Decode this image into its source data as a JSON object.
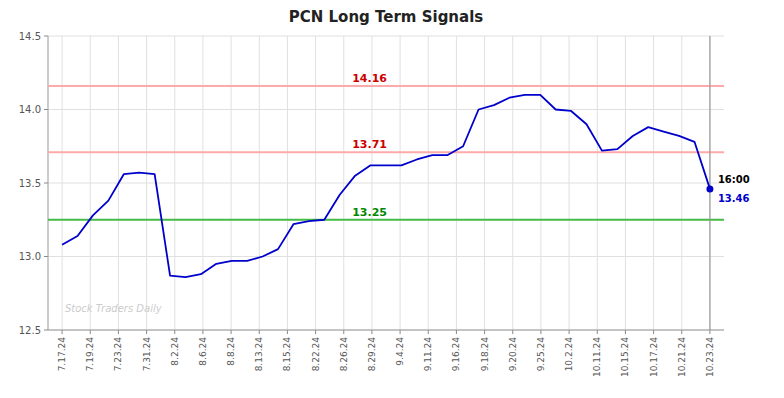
{
  "chart_data": {
    "type": "line",
    "title": "PCN Long Term Signals",
    "xlim": [
      -0.5,
      23.5
    ],
    "xticks": [
      {
        "value": 0,
        "label": "7.17.24"
      },
      {
        "value": 1,
        "label": "7.19.24"
      },
      {
        "value": 2,
        "label": "7.23.24"
      },
      {
        "value": 3,
        "label": "7.31.24"
      },
      {
        "value": 4,
        "label": "8.2.24"
      },
      {
        "value": 5,
        "label": "8.6.24"
      },
      {
        "value": 6,
        "label": "8.8.24"
      },
      {
        "value": 7,
        "label": "8.13.24"
      },
      {
        "value": 8,
        "label": "8.15.24"
      },
      {
        "value": 9,
        "label": "8.22.24"
      },
      {
        "value": 10,
        "label": "8.26.24"
      },
      {
        "value": 11,
        "label": "8.29.24"
      },
      {
        "value": 12,
        "label": "9.4.24"
      },
      {
        "value": 13,
        "label": "9.11.24"
      },
      {
        "value": 14,
        "label": "9.16.24"
      },
      {
        "value": 15,
        "label": "9.18.24"
      },
      {
        "value": 16,
        "label": "9.20.24"
      },
      {
        "value": 17,
        "label": "9.25.24"
      },
      {
        "value": 18,
        "label": "10.2.24"
      },
      {
        "value": 19,
        "label": "10.11.24"
      },
      {
        "value": 20,
        "label": "10.15.24"
      },
      {
        "value": 21,
        "label": "10.17.24"
      },
      {
        "value": 22,
        "label": "10.21.24"
      },
      {
        "value": 23,
        "label": "10.23.24"
      }
    ],
    "ylim": [
      12.5,
      14.5
    ],
    "yticks": [
      12.5,
      {
        "value": 13,
        "label": "13.0"
      },
      13.5,
      {
        "value": 14,
        "label": "14.0"
      },
      14.5
    ],
    "grid": true,
    "color": "#0000cc",
    "values": [
      13.08,
      13.14,
      13.28,
      13.38,
      13.56,
      13.57,
      13.56,
      12.87,
      12.86,
      12.88,
      12.95,
      12.97,
      12.97,
      13.0,
      13.05,
      13.22,
      13.24,
      13.25,
      13.42,
      13.55,
      13.62,
      13.62,
      13.62,
      13.66,
      13.69,
      13.69,
      13.75,
      14.0,
      14.03,
      14.08,
      14.1,
      14.1,
      14.0,
      13.99,
      13.9,
      13.72,
      13.73,
      13.82,
      13.88,
      13.85,
      13.82,
      13.78,
      13.46
    ],
    "reference_lines": [
      {
        "y": 13.25,
        "label": "13.25",
        "color": "#44bb44",
        "label_color": "#008800"
      },
      {
        "y": 13.71,
        "label": "13.71",
        "color": "#ffaaaa",
        "label_color": "#cc0000"
      },
      {
        "y": 14.16,
        "label": "14.16",
        "color": "#ffaaaa",
        "label_color": "#cc0000"
      }
    ],
    "annotations": [
      {
        "text": "16:00"
      },
      {
        "text": "13.46",
        "color": "#0000cc"
      }
    ],
    "watermark": "Stock Traders Daily"
  }
}
